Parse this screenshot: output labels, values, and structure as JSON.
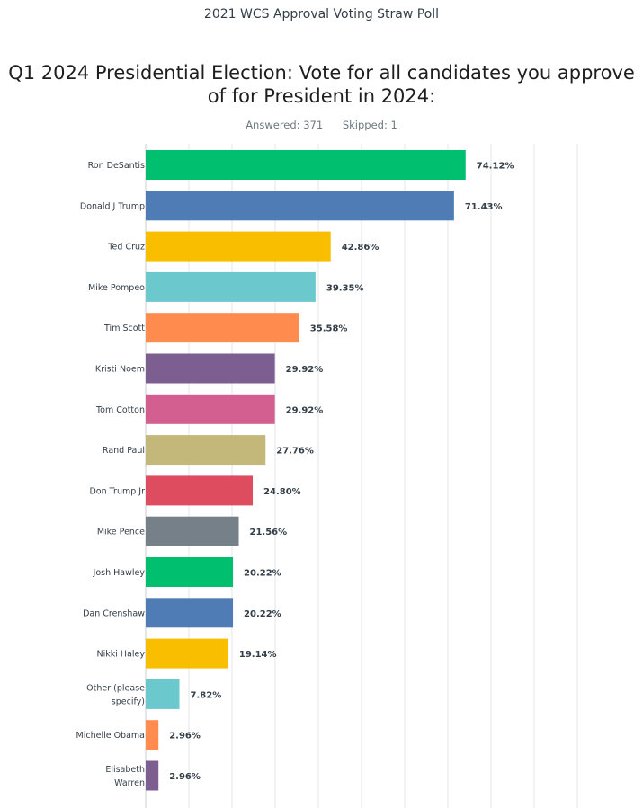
{
  "page": {
    "poll_title": "2021 WCS Approval Voting Straw Poll",
    "question": "Q1 2024 Presidential Election: Vote for all candidates you approve of for President in 2024:",
    "answered": "Answered: 371",
    "skipped": "Skipped: 1"
  },
  "chart_data": {
    "type": "bar",
    "orientation": "horizontal",
    "title": "",
    "xlabel": "",
    "ylabel": "",
    "xlim": [
      0,
      100
    ],
    "grid": true,
    "unit": "%",
    "categories": [
      [
        "Ron DeSantis"
      ],
      [
        "Donald J Trump"
      ],
      [
        "Ted Cruz"
      ],
      [
        "Mike Pompeo"
      ],
      [
        "Tim Scott"
      ],
      [
        "Kristi Noem"
      ],
      [
        "Tom Cotton"
      ],
      [
        "Rand Paul"
      ],
      [
        "Don Trump Jr"
      ],
      [
        "Mike Pence"
      ],
      [
        "Josh Hawley"
      ],
      [
        "Dan Crenshaw"
      ],
      [
        "Nikki Haley"
      ],
      [
        "Other (please",
        "specify)"
      ],
      [
        "Michelle Obama"
      ],
      [
        "Elisabeth",
        "Warren"
      ]
    ],
    "values": [
      74.12,
      71.43,
      42.86,
      39.35,
      35.58,
      29.92,
      29.92,
      27.76,
      24.8,
      21.56,
      20.22,
      20.22,
      19.14,
      7.82,
      2.96,
      2.96
    ],
    "value_labels": [
      "74.12%",
      "71.43%",
      "42.86%",
      "39.35%",
      "35.58%",
      "29.92%",
      "29.92%",
      "27.76%",
      "24.80%",
      "21.56%",
      "20.22%",
      "20.22%",
      "19.14%",
      "7.82%",
      "2.96%",
      "2.96%"
    ],
    "colors": [
      "#00bf6f",
      "#507cb6",
      "#f9be00",
      "#6bc8cd",
      "#ff8b4f",
      "#7d5e90",
      "#d25f90",
      "#c4b77a",
      "#dd4c5f",
      "#768089",
      "#00bf6f",
      "#507cb6",
      "#f9be00",
      "#6bc8cd",
      "#ff8b4f",
      "#7d5e90"
    ]
  }
}
